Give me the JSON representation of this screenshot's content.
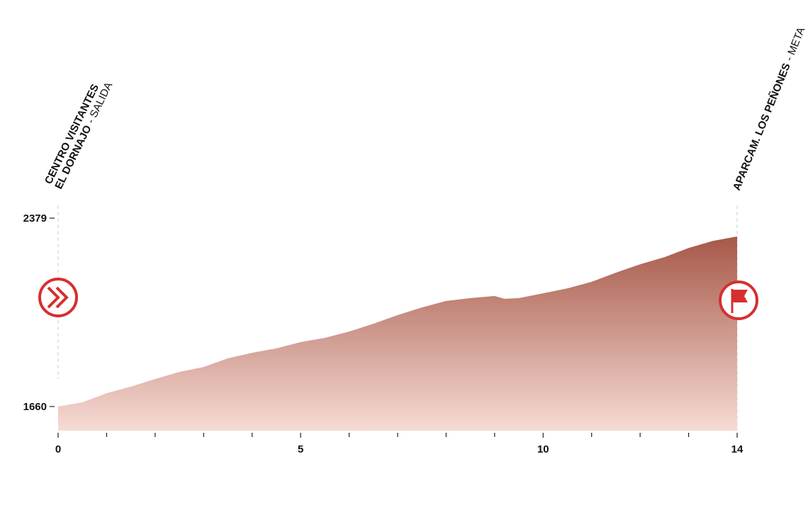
{
  "chart_data": {
    "type": "area",
    "start_label": {
      "lines": [
        "CENTRO VISITANTES",
        "EL DORNAJO"
      ],
      "suffix": "- SALIDA"
    },
    "finish_label": {
      "lines": [
        "APARCAM. LOS PEÑONES"
      ],
      "suffix": "- META"
    },
    "x": [
      0,
      0.5,
      1,
      1.5,
      2,
      2.5,
      3,
      3.5,
      4,
      4.5,
      5,
      5.5,
      6,
      6.5,
      7,
      7.5,
      8,
      8.5,
      9,
      9.2,
      9.5,
      10,
      10.5,
      11,
      11.5,
      12,
      12.5,
      13,
      13.5,
      14
    ],
    "values": [
      1660,
      1676,
      1711,
      1736,
      1765,
      1792,
      1811,
      1844,
      1865,
      1882,
      1906,
      1922,
      1946,
      1976,
      2009,
      2038,
      2063,
      2074,
      2082,
      2071,
      2074,
      2092,
      2111,
      2136,
      2171,
      2203,
      2230,
      2265,
      2292,
      2309
    ],
    "color_top": "#a65848",
    "color_bottom": "#f7dbd5",
    "accent": "#d62f2f",
    "xlim": [
      0,
      14
    ],
    "xticks": [
      0,
      5,
      10,
      14
    ],
    "xminorticks": [
      1,
      2,
      3,
      4,
      6,
      7,
      8,
      9,
      11,
      12,
      13
    ],
    "ylim": [
      1568,
      2379
    ],
    "yticks": [
      1660,
      2379
    ]
  }
}
